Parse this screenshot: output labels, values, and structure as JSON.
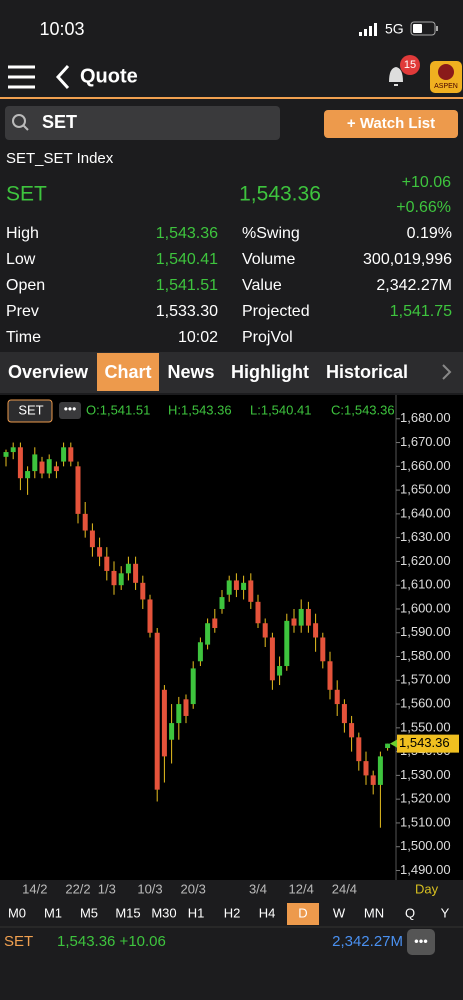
{
  "status_bar": {
    "time": "10:03",
    "network": "5G"
  },
  "nav": {
    "title": "Quote",
    "badge": "15",
    "logo": "ASPEN"
  },
  "search": {
    "query": "SET",
    "button": "+ Watch List"
  },
  "quote": {
    "full_name": "SET_SET Index",
    "symbol": "SET",
    "last": "1,543.36",
    "change": "+10.06",
    "change_pct": "+0.66%",
    "rows": [
      [
        "High",
        "1,543.36",
        "%Swing",
        "0.19%"
      ],
      [
        "Low",
        "1,540.41",
        "Volume",
        "300,019,996"
      ],
      [
        "Open",
        "1,541.51",
        "Value",
        "2,342.27M"
      ],
      [
        "Prev",
        "1,533.30",
        "Projected",
        "1,541.75"
      ],
      [
        "Time",
        "10:02",
        "ProjVol"
      ]
    ]
  },
  "tabs": [
    "Overview",
    "Chart",
    "News",
    "Highlight",
    "Historical"
  ],
  "chart_header": {
    "symbol": "SET",
    "open": "O:1,541.51",
    "high": "H:1,543.36",
    "low": "L:1,540.41",
    "close": "C:1,543.36"
  },
  "chart_data": {
    "type": "candlestick",
    "categories": [
      null,
      null,
      null,
      null,
      "14/2",
      null,
      null,
      null,
      null,
      null,
      "22/2",
      null,
      null,
      null,
      "1/3",
      null,
      null,
      null,
      null,
      null,
      "10/3",
      null,
      null,
      null,
      null,
      null,
      "20/3",
      null,
      null,
      null,
      null,
      null,
      null,
      null,
      null,
      "3/4",
      null,
      null,
      null,
      null,
      null,
      "12/4",
      null,
      null,
      null,
      null,
      null,
      "24/4",
      null,
      null,
      null,
      null,
      null,
      null
    ],
    "open": [
      1664,
      1666,
      1668,
      1655,
      1658,
      1662,
      1657,
      1660,
      1662,
      1668,
      1660,
      1640,
      1633,
      1626,
      1622,
      1616,
      1610,
      1615,
      1619,
      1611,
      1604,
      1590,
      1566,
      1545,
      1552,
      1562,
      1560,
      1578,
      1585,
      1596,
      1600,
      1606,
      1612,
      1608,
      1612,
      1603,
      1594,
      1588,
      1572,
      1576,
      1596,
      1593,
      1600,
      1594,
      1588,
      1578,
      1566,
      1560,
      1552,
      1546,
      1536,
      1530,
      1526,
      1541.51
    ],
    "high": [
      1667,
      1670,
      1670,
      1660,
      1668,
      1664,
      1665,
      1662,
      1670,
      1670,
      1662,
      1645,
      1636,
      1630,
      1626,
      1620,
      1618,
      1622,
      1622,
      1614,
      1606,
      1592,
      1568,
      1560,
      1563,
      1564,
      1578,
      1588,
      1596,
      1600,
      1608,
      1614,
      1615,
      1614,
      1615,
      1606,
      1596,
      1590,
      1580,
      1598,
      1600,
      1604,
      1603,
      1598,
      1590,
      1582,
      1570,
      1562,
      1555,
      1548,
      1540,
      1532,
      1540,
      1543.36
    ],
    "low": [
      1660,
      1663,
      1650,
      1648,
      1655,
      1655,
      1655,
      1655,
      1660,
      1660,
      1636,
      1630,
      1622,
      1618,
      1612,
      1606,
      1608,
      1612,
      1608,
      1600,
      1588,
      1519,
      1527,
      1535,
      1545,
      1552,
      1558,
      1576,
      1583,
      1590,
      1598,
      1603,
      1605,
      1604,
      1600,
      1592,
      1584,
      1566,
      1568,
      1574,
      1590,
      1590,
      1590,
      1582,
      1575,
      1562,
      1555,
      1548,
      1540,
      1532,
      1526,
      1522,
      1508,
      1540.41
    ],
    "close": [
      1666,
      1668,
      1655,
      1658,
      1665,
      1657,
      1663,
      1658,
      1668,
      1662,
      1640,
      1633,
      1626,
      1622,
      1616,
      1610,
      1615,
      1619,
      1611,
      1604,
      1590,
      1524,
      1538,
      1552,
      1560,
      1555,
      1575,
      1586,
      1594,
      1592,
      1605,
      1612,
      1608,
      1611,
      1603,
      1594,
      1588,
      1570,
      1576,
      1595,
      1593,
      1600,
      1593,
      1588,
      1578,
      1566,
      1560,
      1552,
      1546,
      1536,
      1530,
      1526,
      1538,
      1543.36
    ],
    "up_color": "#3ec43e",
    "down_color": "#e5533b",
    "ylim": [
      1486,
      1690
    ],
    "yticks": [
      {
        "value": 1490,
        "label": "1,490.00"
      },
      {
        "value": 1500,
        "label": "1,500.00"
      },
      {
        "value": 1510,
        "label": "1,510.00"
      },
      {
        "value": 1520,
        "label": "1,520.00"
      },
      {
        "value": 1530,
        "label": "1,530.00"
      },
      {
        "value": 1540,
        "label": "1,540.00"
      },
      {
        "value": 1550,
        "label": "1,550.00"
      },
      {
        "value": 1560,
        "label": "1,560.00"
      },
      {
        "value": 1570,
        "label": "1,570.00"
      },
      {
        "value": 1580,
        "label": "1,580.00"
      },
      {
        "value": 1590,
        "label": "1,590.00"
      },
      {
        "value": 1600,
        "label": "1,600.00"
      },
      {
        "value": 1610,
        "label": "1,610.00"
      },
      {
        "value": 1620,
        "label": "1,620.00"
      },
      {
        "value": 1630,
        "label": "1,630.00"
      },
      {
        "value": 1640,
        "label": "1,640.00"
      },
      {
        "value": 1650,
        "label": "1,650.00"
      },
      {
        "value": 1660,
        "label": "1,660.00"
      },
      {
        "value": 1670,
        "label": "1,670.00"
      },
      {
        "value": 1680,
        "label": "1,680.00"
      }
    ],
    "last_price": {
      "value": 1543.36,
      "label": "1,543.36"
    },
    "period_label": "Day"
  },
  "timeframes": [
    "M0",
    "M1",
    "M5",
    "M15",
    "M30",
    "H1",
    "H2",
    "H4",
    "D",
    "W",
    "MN",
    "Q",
    "Y"
  ],
  "footer": {
    "symbol": "SET",
    "price": "1,543.36 +10.06",
    "value": "2,342.27M"
  }
}
